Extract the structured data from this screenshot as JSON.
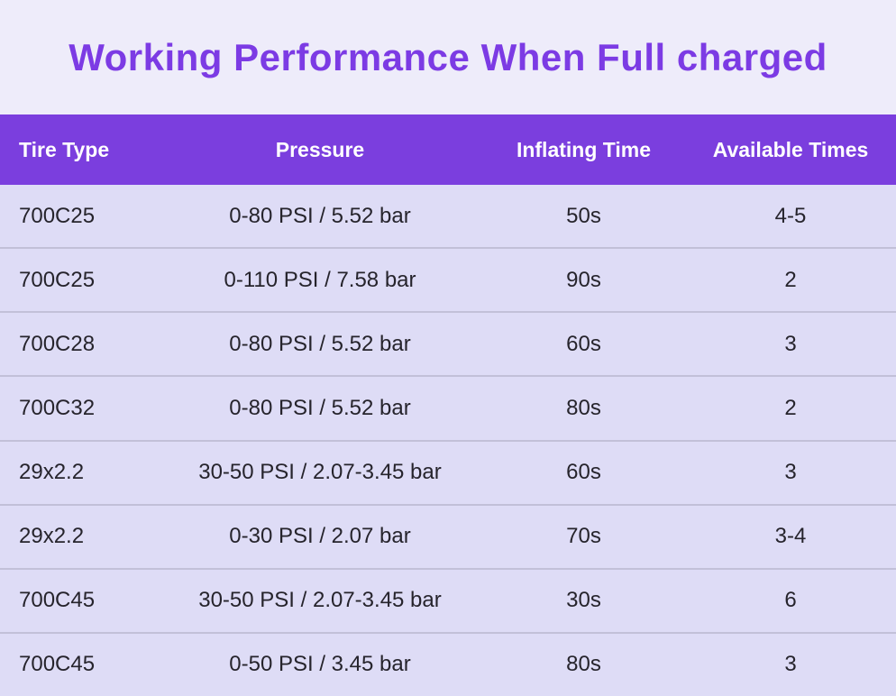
{
  "page": {
    "title": "Working Performance When Full charged"
  },
  "colors": {
    "title_purple": "#7C3BE4",
    "header_band_purple": "#7B3EDE",
    "header_text": "#FFFFFF",
    "page_background": "#EEECFA",
    "row_background": "#DEDCF6",
    "row_divider": "#C2C0D8",
    "body_text": "#26242C"
  },
  "chart_data": {
    "type": "table",
    "title": "Working Performance When Full charged",
    "columns": [
      "Tire Type",
      "Pressure",
      "Inflating Time",
      "Available Times"
    ],
    "rows": [
      [
        "700C25",
        "0-80 PSI / 5.52 bar",
        "50s",
        "4-5"
      ],
      [
        "700C25",
        "0-110 PSI / 7.58 bar",
        "90s",
        "2"
      ],
      [
        "700C28",
        "0-80 PSI / 5.52 bar",
        "60s",
        "3"
      ],
      [
        "700C32",
        "0-80 PSI / 5.52 bar",
        "80s",
        "2"
      ],
      [
        "29x2.2",
        "30-50 PSI / 2.07-3.45 bar",
        "60s",
        "3"
      ],
      [
        "29x2.2",
        "0-30 PSI / 2.07 bar",
        "70s",
        "3-4"
      ],
      [
        "700C45",
        "30-50 PSI / 2.07-3.45 bar",
        "30s",
        "6"
      ],
      [
        "700C45",
        "0-50 PSI / 3.45 bar",
        "80s",
        "3"
      ]
    ],
    "layout": {
      "header_style": "solid purple band, white bold labels",
      "first_column_alignment": "left",
      "other_columns_alignment": "center",
      "row_dividers": true
    }
  }
}
